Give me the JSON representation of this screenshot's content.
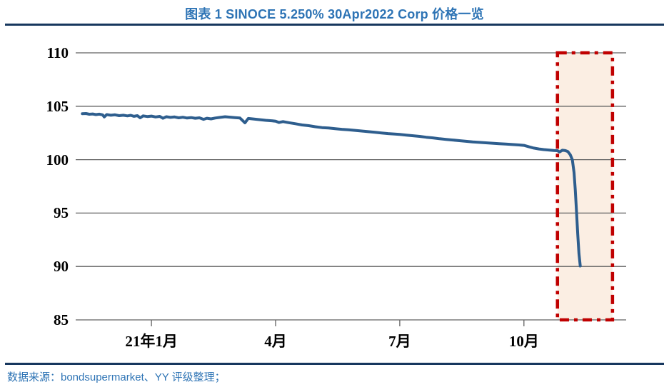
{
  "header": {
    "title": "图表  1 SINOCE 5.250% 30Apr2022 Corp 价格一览"
  },
  "footer": {
    "source": "数据来源：bondsupermarket、YY 评级整理；"
  },
  "theme": {
    "accent_blue": "#2E74B5",
    "rule_navy": "#17375E",
    "line_blue": "#2E5E8E",
    "highlight_red": "#C00000",
    "highlight_fill": "#FBEEE3",
    "grid_gray": "#606060"
  },
  "chart_data": {
    "type": "line",
    "title": "图表 1 SINOCE 5.250% 30Apr2022 Corp 价格一览",
    "xlabel": "",
    "ylabel": "",
    "x_unit": "months relative to Jan-2021 tick (0 = 21年1月, 3 = 4月, 6 = 7月, 9 = 10月)",
    "xlim": [
      -1.83,
      11.47
    ],
    "ylim": [
      85,
      110
    ],
    "yticks": [
      85,
      90,
      95,
      100,
      105,
      110
    ],
    "xticks": [
      {
        "pos": 0,
        "label": "21年1月"
      },
      {
        "pos": 3,
        "label": "4月"
      },
      {
        "pos": 6,
        "label": "7月"
      },
      {
        "pos": 9,
        "label": "10月"
      }
    ],
    "grid": "horizontal",
    "legend": "none",
    "gridline_color": "#606060",
    "label_color": "#000000",
    "highlight_box": {
      "x0": 9.81,
      "x1": 11.14,
      "y0": 85,
      "y1": 110,
      "fill": "#FBEEE3",
      "border_color": "#C00000",
      "border_style": "dash-dot"
    },
    "series": [
      {
        "name": "SINOCE 5.250% 30Apr2022 Corp price",
        "color": "#2E5E8E",
        "stroke_width": 4,
        "points": [
          [
            -1.67,
            104.3
          ],
          [
            -1.58,
            104.32
          ],
          [
            -1.5,
            104.25
          ],
          [
            -1.42,
            104.28
          ],
          [
            -1.34,
            104.22
          ],
          [
            -1.26,
            104.26
          ],
          [
            -1.18,
            104.2
          ],
          [
            -1.14,
            104.0
          ],
          [
            -1.08,
            104.22
          ],
          [
            -0.98,
            104.16
          ],
          [
            -0.88,
            104.2
          ],
          [
            -0.78,
            104.12
          ],
          [
            -0.68,
            104.16
          ],
          [
            -0.58,
            104.1
          ],
          [
            -0.5,
            104.15
          ],
          [
            -0.42,
            104.06
          ],
          [
            -0.34,
            104.12
          ],
          [
            -0.27,
            103.92
          ],
          [
            -0.2,
            104.1
          ],
          [
            -0.1,
            104.04
          ],
          [
            0.0,
            104.08
          ],
          [
            0.1,
            104.0
          ],
          [
            0.2,
            104.05
          ],
          [
            0.28,
            103.88
          ],
          [
            0.36,
            104.02
          ],
          [
            0.46,
            103.96
          ],
          [
            0.56,
            104.0
          ],
          [
            0.66,
            103.92
          ],
          [
            0.76,
            103.97
          ],
          [
            0.86,
            103.9
          ],
          [
            0.96,
            103.94
          ],
          [
            1.06,
            103.88
          ],
          [
            1.16,
            103.92
          ],
          [
            1.26,
            103.78
          ],
          [
            1.34,
            103.88
          ],
          [
            1.44,
            103.82
          ],
          [
            1.54,
            103.9
          ],
          [
            1.66,
            103.96
          ],
          [
            1.78,
            104.02
          ],
          [
            1.9,
            103.98
          ],
          [
            2.02,
            103.94
          ],
          [
            2.14,
            103.9
          ],
          [
            2.26,
            103.45
          ],
          [
            2.34,
            103.86
          ],
          [
            2.48,
            103.8
          ],
          [
            2.62,
            103.74
          ],
          [
            2.76,
            103.68
          ],
          [
            2.9,
            103.64
          ],
          [
            3.0,
            103.6
          ],
          [
            3.08,
            103.48
          ],
          [
            3.18,
            103.56
          ],
          [
            3.32,
            103.46
          ],
          [
            3.48,
            103.36
          ],
          [
            3.64,
            103.25
          ],
          [
            3.8,
            103.18
          ],
          [
            3.96,
            103.08
          ],
          [
            4.12,
            103.0
          ],
          [
            4.28,
            102.96
          ],
          [
            4.44,
            102.9
          ],
          [
            4.6,
            102.84
          ],
          [
            4.76,
            102.8
          ],
          [
            4.92,
            102.74
          ],
          [
            5.08,
            102.68
          ],
          [
            5.24,
            102.62
          ],
          [
            5.4,
            102.56
          ],
          [
            5.56,
            102.5
          ],
          [
            5.72,
            102.44
          ],
          [
            5.88,
            102.4
          ],
          [
            6.0,
            102.36
          ],
          [
            6.16,
            102.3
          ],
          [
            6.32,
            102.24
          ],
          [
            6.48,
            102.18
          ],
          [
            6.64,
            102.1
          ],
          [
            6.8,
            102.04
          ],
          [
            6.96,
            101.96
          ],
          [
            7.12,
            101.9
          ],
          [
            7.28,
            101.84
          ],
          [
            7.44,
            101.78
          ],
          [
            7.6,
            101.72
          ],
          [
            7.76,
            101.66
          ],
          [
            7.92,
            101.62
          ],
          [
            8.08,
            101.58
          ],
          [
            8.24,
            101.54
          ],
          [
            8.4,
            101.5
          ],
          [
            8.56,
            101.46
          ],
          [
            8.72,
            101.42
          ],
          [
            8.88,
            101.38
          ],
          [
            9.0,
            101.34
          ],
          [
            9.12,
            101.2
          ],
          [
            9.24,
            101.08
          ],
          [
            9.36,
            101.0
          ],
          [
            9.48,
            100.94
          ],
          [
            9.6,
            100.9
          ],
          [
            9.72,
            100.86
          ],
          [
            9.81,
            100.84
          ],
          [
            9.86,
            100.72
          ],
          [
            9.93,
            100.88
          ],
          [
            10.0,
            100.85
          ],
          [
            10.06,
            100.76
          ],
          [
            10.12,
            100.46
          ],
          [
            10.17,
            100.0
          ],
          [
            10.21,
            98.8
          ],
          [
            10.24,
            97.2
          ],
          [
            10.27,
            95.2
          ],
          [
            10.3,
            93.0
          ],
          [
            10.33,
            91.2
          ],
          [
            10.36,
            90.05
          ]
        ]
      }
    ]
  }
}
